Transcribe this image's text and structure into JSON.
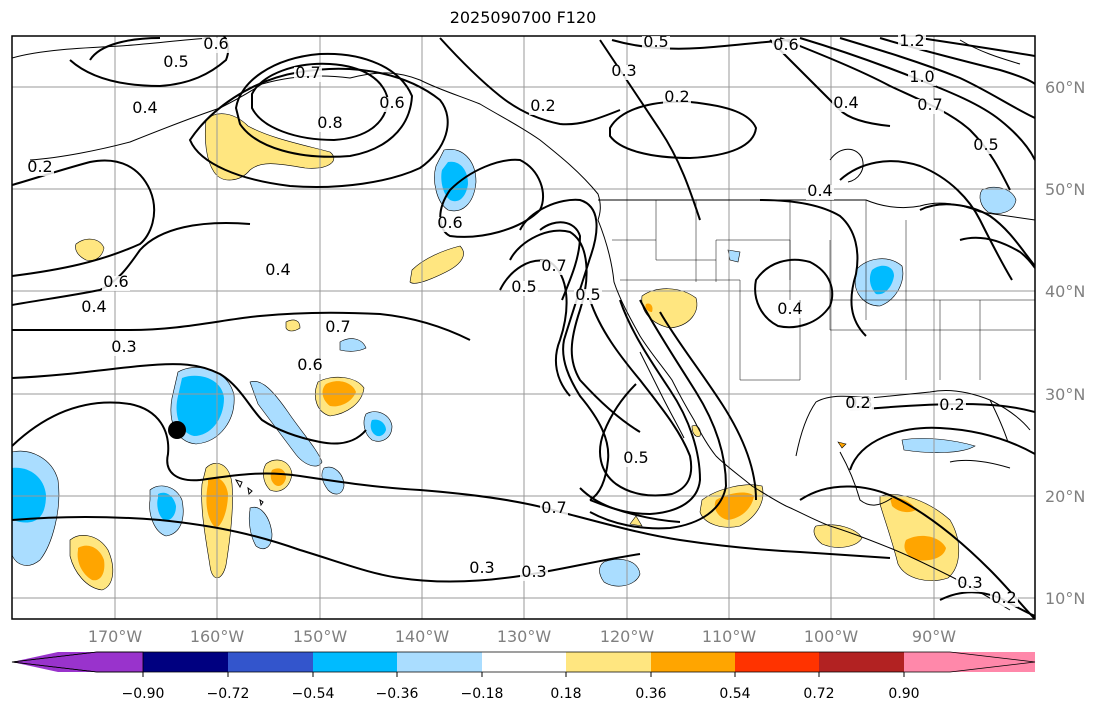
{
  "title": "2025090700 F120",
  "lat_labels": [
    "60°N",
    "50°N",
    "40°N",
    "30°N",
    "20°N",
    "10°N"
  ],
  "lon_labels": [
    "170°W",
    "160°W",
    "150°W",
    "140°W",
    "130°W",
    "120°W",
    "110°W",
    "100°W",
    "90°W"
  ],
  "contour_labels": [
    "0.6",
    "0.5",
    "0.4",
    "0.7",
    "0.8",
    "0.6",
    "0.2",
    "0.3",
    "0.5",
    "0.2",
    "0.6",
    "1.2",
    "1.0",
    "0.4",
    "0.7",
    "0.5",
    "0.4",
    "0.6",
    "0.4",
    "0.6",
    "0.7",
    "0.5",
    "0.4",
    "0.5",
    "0.3",
    "0.7",
    "0.6",
    "0.5",
    "0.4",
    "0.3",
    "0.2",
    "0.7",
    "0.3",
    "0.3",
    "0.3",
    "0.2",
    "0.2",
    "0.2"
  ],
  "colorbar": {
    "tick_labels": [
      "−0.90",
      "−0.72",
      "−0.54",
      "−0.36",
      "−0.18",
      "0.18",
      "0.36",
      "0.54",
      "0.72",
      "0.90"
    ],
    "colors": [
      "#9933cc",
      "#000080",
      "#3355cc",
      "#00bbff",
      "#aaddff",
      "#ffffff",
      "#ffe680",
      "#ffa500",
      "#ff3300",
      "#b22222",
      "#ff88aa"
    ]
  },
  "marker": "black-dot"
}
